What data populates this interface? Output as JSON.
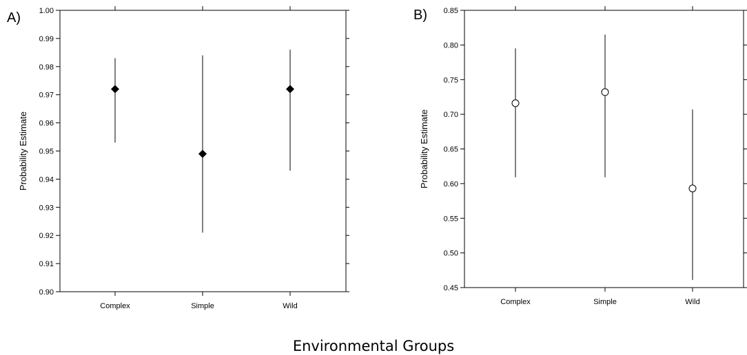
{
  "figure": {
    "caption": "Environmental Groups"
  },
  "chart_data": [
    {
      "type": "scatter",
      "panel_label": "A)",
      "title": "",
      "xlabel": "",
      "ylabel": "Probability Estimate",
      "categories": [
        "Complex",
        "Simple",
        "Wild"
      ],
      "ylim": [
        0.9,
        1.0
      ],
      "yticks": [
        "0.90",
        "0.91",
        "0.92",
        "0.93",
        "0.94",
        "0.95",
        "0.96",
        "0.97",
        "0.98",
        "0.99",
        "1.00"
      ],
      "marker": "filled-diamond",
      "grid": false,
      "points": [
        {
          "category": "Complex",
          "estimate": 0.972,
          "lower": 0.953,
          "upper": 0.983
        },
        {
          "category": "Simple",
          "estimate": 0.949,
          "lower": 0.921,
          "upper": 0.984
        },
        {
          "category": "Wild",
          "estimate": 0.972,
          "lower": 0.943,
          "upper": 0.986
        }
      ]
    },
    {
      "type": "scatter",
      "panel_label": "B)",
      "title": "",
      "xlabel": "",
      "ylabel": "Probability Estimate",
      "categories": [
        "Complex",
        "Simple",
        "Wild"
      ],
      "ylim": [
        0.45,
        0.85
      ],
      "yticks": [
        "0.45",
        "0.50",
        "0.55",
        "0.60",
        "0.65",
        "0.70",
        "0.75",
        "0.80",
        "0.85"
      ],
      "marker": "open-circle",
      "grid": false,
      "points": [
        {
          "category": "Complex",
          "estimate": 0.716,
          "lower": 0.609,
          "upper": 0.795
        },
        {
          "category": "Simple",
          "estimate": 0.732,
          "lower": 0.609,
          "upper": 0.815
        },
        {
          "category": "Wild",
          "estimate": 0.593,
          "lower": 0.461,
          "upper": 0.707
        }
      ]
    }
  ]
}
